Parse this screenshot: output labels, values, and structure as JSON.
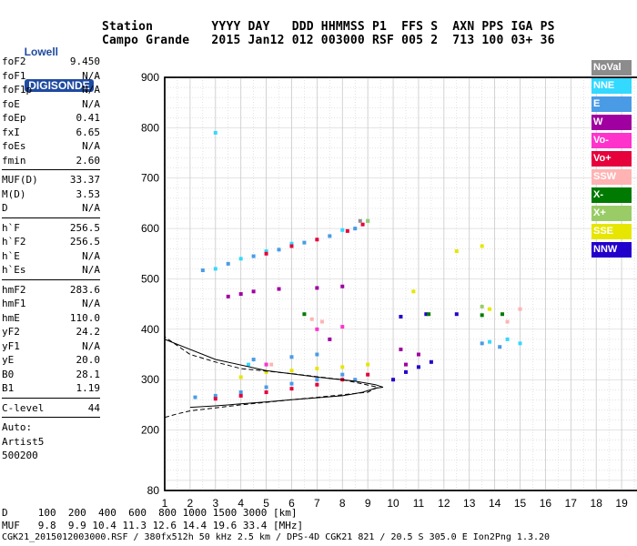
{
  "logo": {
    "line1": "Lowell",
    "line2": "DIGISONDE"
  },
  "header": {
    "line1": "Station        YYYY DAY   DDD HHMMSS P1  FFS S  AXN PPS IGA PS",
    "line2": "Campo Grande   2015 Jan12 012 003000 RSF 005 2  713 100 03+ 36"
  },
  "params": [
    {
      "k": "foF2",
      "v": "9.450"
    },
    {
      "k": "foF1",
      "v": "N/A"
    },
    {
      "k": "foF1p",
      "v": "N/A"
    },
    {
      "k": "foE",
      "v": "N/A"
    },
    {
      "k": "foEp",
      "v": "0.41"
    },
    {
      "k": "fxI",
      "v": "6.65"
    },
    {
      "k": "foEs",
      "v": "N/A"
    },
    {
      "k": "fmin",
      "v": "2.60"
    },
    {
      "k": "MUF(D)",
      "v": "33.37"
    },
    {
      "k": "M(D)",
      "v": "3.53"
    },
    {
      "k": "D",
      "v": "N/A"
    },
    {
      "k": "h`F",
      "v": "256.5"
    },
    {
      "k": "h`F2",
      "v": "256.5"
    },
    {
      "k": "h`E",
      "v": "N/A"
    },
    {
      "k": "h`Es",
      "v": "N/A"
    },
    {
      "k": "hmF2",
      "v": "283.6"
    },
    {
      "k": "hmF1",
      "v": "N/A"
    },
    {
      "k": "hmE",
      "v": "110.0"
    },
    {
      "k": "yF2",
      "v": "24.2"
    },
    {
      "k": "yF1",
      "v": "N/A"
    },
    {
      "k": "yE",
      "v": "20.0"
    },
    {
      "k": "B0",
      "v": "28.1"
    },
    {
      "k": "B1",
      "v": "1.19"
    },
    {
      "k": "C-level",
      "v": "44"
    }
  ],
  "auto": {
    "label": "Auto:",
    "artist": "Artist5",
    "code": "500200"
  },
  "legend": [
    {
      "name": "NoVal",
      "color": "#8c8c8c"
    },
    {
      "name": "NNE",
      "color": "#33d9ff"
    },
    {
      "name": "E",
      "color": "#4a9be6"
    },
    {
      "name": "W",
      "color": "#a000a0"
    },
    {
      "name": "Vo-",
      "color": "#ff33cc"
    },
    {
      "name": "Vo+",
      "color": "#e6003c"
    },
    {
      "name": "SSW",
      "color": "#ffb3b3"
    },
    {
      "name": "X-",
      "color": "#007a00"
    },
    {
      "name": "X+",
      "color": "#99cc66"
    },
    {
      "name": "SSE",
      "color": "#e6e600"
    },
    {
      "name": "NNW",
      "color": "#2200cc"
    }
  ],
  "footer": {
    "line1": "D     100  200  400  600  800 1000 1500 3000 [km]",
    "line2": "MUF   9.8  9.9 10.4 11.3 12.6 14.4 19.6 33.4 [MHz]",
    "line3": "CGK21_2015012003000.RSF / 380fx512h 50 kHz 2.5 km / DPS-4D CGK21 821 / 20.5 S 305.0 E Ion2Png 1.3.20"
  },
  "chart_data": {
    "type": "scatter",
    "xlim": [
      1,
      20
    ],
    "ylim": [
      80,
      900
    ],
    "xticks": [
      1,
      2,
      3,
      4,
      5,
      6,
      7,
      8,
      9,
      10,
      11,
      12,
      13,
      14,
      15,
      16,
      17,
      18,
      19,
      20
    ],
    "yticks": [
      80,
      200,
      300,
      400,
      500,
      600,
      700,
      800,
      900
    ],
    "grid": true,
    "series": [
      {
        "name": "E",
        "color": "#4a9be6",
        "points": [
          [
            2.2,
            265
          ],
          [
            3,
            268
          ],
          [
            4,
            275
          ],
          [
            5,
            285
          ],
          [
            6,
            292
          ],
          [
            7,
            300
          ],
          [
            8,
            310
          ],
          [
            8.5,
            300
          ],
          [
            2.5,
            517
          ],
          [
            3.5,
            530
          ],
          [
            4.5,
            545
          ],
          [
            5.5,
            558
          ],
          [
            6.5,
            572
          ],
          [
            7.5,
            585
          ],
          [
            8.5,
            600
          ],
          [
            13.5,
            372
          ],
          [
            14.2,
            365
          ],
          [
            7,
            350
          ],
          [
            6,
            345
          ],
          [
            4.5,
            340
          ]
        ]
      },
      {
        "name": "NNE",
        "color": "#33d9ff",
        "points": [
          [
            3,
            520
          ],
          [
            4,
            540
          ],
          [
            5,
            555
          ],
          [
            6,
            570
          ],
          [
            8,
            597
          ],
          [
            9,
            615
          ],
          [
            13.8,
            375
          ],
          [
            14.5,
            380
          ],
          [
            15,
            372
          ],
          [
            3,
            790
          ],
          [
            4.3,
            330
          ],
          [
            5,
            330
          ]
        ]
      },
      {
        "name": "Vo+",
        "color": "#e6003c",
        "points": [
          [
            3,
            262
          ],
          [
            4,
            268
          ],
          [
            5,
            275
          ],
          [
            6,
            282
          ],
          [
            7,
            290
          ],
          [
            8,
            300
          ],
          [
            9,
            310
          ],
          [
            5,
            550
          ],
          [
            6,
            565
          ],
          [
            7,
            578
          ],
          [
            8.2,
            595
          ],
          [
            8.8,
            608
          ]
        ]
      },
      {
        "name": "W",
        "color": "#a000a0",
        "points": [
          [
            3.5,
            465
          ],
          [
            4,
            470
          ],
          [
            4.5,
            475
          ],
          [
            5.5,
            480
          ],
          [
            7,
            482
          ],
          [
            8,
            485
          ],
          [
            10.3,
            360
          ],
          [
            11,
            350
          ],
          [
            10.5,
            330
          ],
          [
            7.5,
            380
          ]
        ]
      },
      {
        "name": "SSE",
        "color": "#e6e600",
        "points": [
          [
            5,
            315
          ],
          [
            6,
            318
          ],
          [
            7,
            322
          ],
          [
            8,
            325
          ],
          [
            9,
            330
          ],
          [
            4,
            305
          ],
          [
            10.8,
            475
          ],
          [
            12.5,
            555
          ],
          [
            13.5,
            565
          ],
          [
            13.8,
            440
          ]
        ]
      },
      {
        "name": "NNW",
        "color": "#2200cc",
        "points": [
          [
            10.5,
            315
          ],
          [
            11,
            325
          ],
          [
            11.5,
            335
          ],
          [
            10,
            300
          ],
          [
            10.3,
            425
          ],
          [
            11.3,
            430
          ],
          [
            12.5,
            430
          ]
        ]
      },
      {
        "name": "X-",
        "color": "#007a00",
        "points": [
          [
            13.5,
            428
          ],
          [
            14.3,
            430
          ],
          [
            6.5,
            430
          ],
          [
            11.4,
            430
          ]
        ]
      },
      {
        "name": "SSW",
        "color": "#ffb3b3",
        "points": [
          [
            6.8,
            420
          ],
          [
            7.2,
            415
          ],
          [
            14.5,
            415
          ],
          [
            15,
            440
          ],
          [
            5.2,
            330
          ]
        ]
      },
      {
        "name": "Vo-",
        "color": "#ff33cc",
        "points": [
          [
            7,
            400
          ],
          [
            8,
            405
          ],
          [
            5,
            330
          ]
        ]
      },
      {
        "name": "X+",
        "color": "#99cc66",
        "points": [
          [
            9,
            615
          ],
          [
            13.5,
            445
          ]
        ]
      },
      {
        "name": "NoVal",
        "color": "#8c8c8c",
        "points": [
          [
            8.7,
            615
          ]
        ]
      }
    ],
    "profile": {
      "solid": [
        [
          2,
          245
        ],
        [
          3,
          248
        ],
        [
          4,
          252
        ],
        [
          5,
          256
        ],
        [
          6,
          260
        ],
        [
          7,
          264
        ],
        [
          8,
          268
        ],
        [
          8.8,
          275
        ],
        [
          9.3,
          283
        ],
        [
          9.6,
          285
        ],
        [
          9.3,
          290
        ],
        [
          8.5,
          297
        ],
        [
          7,
          305
        ],
        [
          5,
          318
        ],
        [
          3,
          340
        ],
        [
          1,
          380
        ]
      ],
      "dashed": [
        [
          1,
          225
        ],
        [
          1.5,
          232
        ],
        [
          2,
          238
        ],
        [
          3,
          244
        ],
        [
          4,
          250
        ],
        [
          5,
          255
        ],
        [
          6,
          260
        ],
        [
          7,
          265
        ],
        [
          8,
          270
        ],
        [
          9,
          275
        ],
        [
          9.4,
          285
        ],
        [
          8,
          300
        ],
        [
          6,
          312
        ],
        [
          4,
          322
        ],
        [
          3,
          335
        ],
        [
          2,
          350
        ],
        [
          1,
          385
        ]
      ]
    }
  }
}
